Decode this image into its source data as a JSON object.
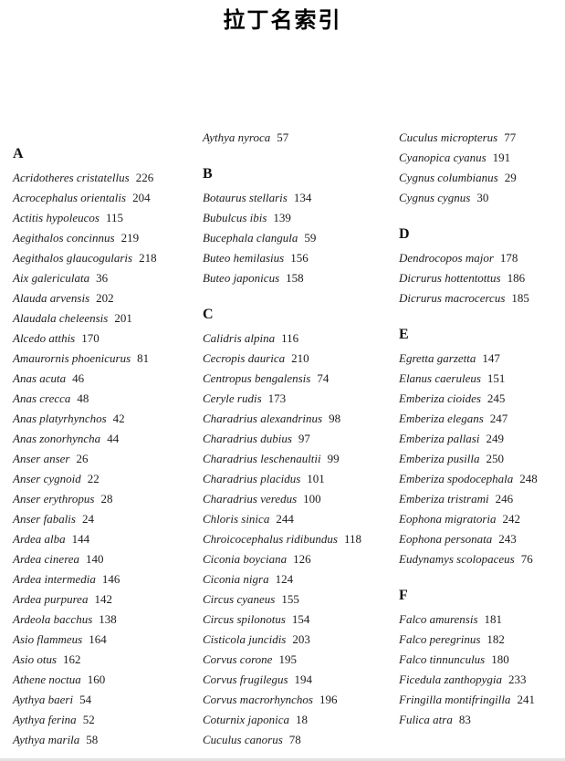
{
  "title": "拉丁名索引",
  "colors": {
    "text": "#1d1d1d",
    "title": "#000000",
    "bottom_edge": "#e3e3e3"
  },
  "columns": [
    {
      "blocks": [
        {
          "type": "header",
          "text": "A"
        },
        {
          "type": "entry",
          "name": "Acridotheres cristatellus",
          "page": "226"
        },
        {
          "type": "entry",
          "name": "Acrocephalus orientalis",
          "page": "204"
        },
        {
          "type": "entry",
          "name": "Actitis hypoleucos",
          "page": "115"
        },
        {
          "type": "entry",
          "name": "Aegithalos concinnus",
          "page": "219"
        },
        {
          "type": "entry",
          "name": "Aegithalos glaucogularis",
          "page": "218"
        },
        {
          "type": "entry",
          "name": "Aix galericulata",
          "page": "36"
        },
        {
          "type": "entry",
          "name": "Alauda arvensis",
          "page": "202"
        },
        {
          "type": "entry",
          "name": "Alaudala cheleensis",
          "page": "201"
        },
        {
          "type": "entry",
          "name": "Alcedo atthis",
          "page": "170"
        },
        {
          "type": "entry",
          "name": "Amaurornis phoenicurus",
          "page": "81"
        },
        {
          "type": "entry",
          "name": "Anas acuta",
          "page": "46"
        },
        {
          "type": "entry",
          "name": "Anas crecca",
          "page": "48"
        },
        {
          "type": "entry",
          "name": "Anas platyrhynchos",
          "page": "42"
        },
        {
          "type": "entry",
          "name": "Anas zonorhyncha",
          "page": "44"
        },
        {
          "type": "entry",
          "name": "Anser anser",
          "page": "26"
        },
        {
          "type": "entry",
          "name": "Anser cygnoid",
          "page": "22"
        },
        {
          "type": "entry",
          "name": "Anser erythropus",
          "page": "28"
        },
        {
          "type": "entry",
          "name": "Anser fabalis",
          "page": "24"
        },
        {
          "type": "entry",
          "name": "Ardea alba",
          "page": "144"
        },
        {
          "type": "entry",
          "name": "Ardea cinerea",
          "page": "140"
        },
        {
          "type": "entry",
          "name": "Ardea intermedia",
          "page": "146"
        },
        {
          "type": "entry",
          "name": "Ardea purpurea",
          "page": "142"
        },
        {
          "type": "entry",
          "name": "Ardeola bacchus",
          "page": "138"
        },
        {
          "type": "entry",
          "name": "Asio flammeus",
          "page": "164"
        },
        {
          "type": "entry",
          "name": "Asio otus",
          "page": "162"
        },
        {
          "type": "entry",
          "name": "Athene noctua",
          "page": "160"
        },
        {
          "type": "entry",
          "name": "Aythya baeri",
          "page": "54"
        },
        {
          "type": "entry",
          "name": "Aythya ferina",
          "page": "52"
        },
        {
          "type": "entry",
          "name": "Aythya marila",
          "page": "58"
        }
      ]
    },
    {
      "blocks": [
        {
          "type": "entry",
          "name": "Aythya nyroca",
          "page": "57"
        },
        {
          "type": "header",
          "text": "B"
        },
        {
          "type": "entry",
          "name": "Botaurus stellaris",
          "page": "134"
        },
        {
          "type": "entry",
          "name": "Bubulcus ibis",
          "page": "139"
        },
        {
          "type": "entry",
          "name": "Bucephala clangula",
          "page": "59"
        },
        {
          "type": "entry",
          "name": "Buteo hemilasius",
          "page": "156"
        },
        {
          "type": "entry",
          "name": "Buteo japonicus",
          "page": "158"
        },
        {
          "type": "header",
          "text": "C"
        },
        {
          "type": "entry",
          "name": "Calidris alpina",
          "page": "116"
        },
        {
          "type": "entry",
          "name": "Cecropis daurica",
          "page": "210"
        },
        {
          "type": "entry",
          "name": "Centropus bengalensis",
          "page": "74"
        },
        {
          "type": "entry",
          "name": "Ceryle rudis",
          "page": "173"
        },
        {
          "type": "entry",
          "name": "Charadrius alexandrinus",
          "page": "98"
        },
        {
          "type": "entry",
          "name": "Charadrius dubius",
          "page": "97"
        },
        {
          "type": "entry",
          "name": "Charadrius leschenaultii",
          "page": "99"
        },
        {
          "type": "entry",
          "name": "Charadrius placidus",
          "page": "101"
        },
        {
          "type": "entry",
          "name": "Charadrius veredus",
          "page": "100"
        },
        {
          "type": "entry",
          "name": "Chloris sinica",
          "page": "244"
        },
        {
          "type": "entry",
          "name": "Chroicocephalus ridibundus",
          "page": "118"
        },
        {
          "type": "entry",
          "name": "Ciconia boyciana",
          "page": "126"
        },
        {
          "type": "entry",
          "name": "Ciconia nigra",
          "page": "124"
        },
        {
          "type": "entry",
          "name": "Circus cyaneus",
          "page": "155"
        },
        {
          "type": "entry",
          "name": "Circus spilonotus",
          "page": "154"
        },
        {
          "type": "entry",
          "name": "Cisticola juncidis",
          "page": "203"
        },
        {
          "type": "entry",
          "name": "Corvus corone",
          "page": "195"
        },
        {
          "type": "entry",
          "name": "Corvus frugilegus",
          "page": "194"
        },
        {
          "type": "entry",
          "name": "Corvus macrorhynchos",
          "page": "196"
        },
        {
          "type": "entry",
          "name": "Coturnix japonica",
          "page": "18"
        },
        {
          "type": "entry",
          "name": "Cuculus canorus",
          "page": "78"
        }
      ]
    },
    {
      "blocks": [
        {
          "type": "entry",
          "name": "Cuculus micropterus",
          "page": "77"
        },
        {
          "type": "entry",
          "name": "Cyanopica cyanus",
          "page": "191"
        },
        {
          "type": "entry",
          "name": "Cygnus columbianus",
          "page": "29"
        },
        {
          "type": "entry",
          "name": "Cygnus cygnus",
          "page": "30"
        },
        {
          "type": "header",
          "text": "D"
        },
        {
          "type": "entry",
          "name": "Dendrocopos major",
          "page": "178"
        },
        {
          "type": "entry",
          "name": "Dicrurus hottentottus",
          "page": "186"
        },
        {
          "type": "entry",
          "name": "Dicrurus macrocercus",
          "page": "185"
        },
        {
          "type": "header",
          "text": "E"
        },
        {
          "type": "entry",
          "name": "Egretta garzetta",
          "page": "147"
        },
        {
          "type": "entry",
          "name": "Elanus caeruleus",
          "page": "151"
        },
        {
          "type": "entry",
          "name": "Emberiza cioides",
          "page": "245"
        },
        {
          "type": "entry",
          "name": "Emberiza elegans",
          "page": "247"
        },
        {
          "type": "entry",
          "name": "Emberiza pallasi",
          "page": "249"
        },
        {
          "type": "entry",
          "name": "Emberiza pusilla",
          "page": "250"
        },
        {
          "type": "entry",
          "name": "Emberiza spodocephala",
          "page": "248"
        },
        {
          "type": "entry",
          "name": "Emberiza tristrami",
          "page": "246"
        },
        {
          "type": "entry",
          "name": "Eophona migratoria",
          "page": "242"
        },
        {
          "type": "entry",
          "name": "Eophona personata",
          "page": "243"
        },
        {
          "type": "entry",
          "name": "Eudynamys scolopaceus",
          "page": "76"
        },
        {
          "type": "header",
          "text": "F"
        },
        {
          "type": "entry",
          "name": "Falco amurensis",
          "page": "181"
        },
        {
          "type": "entry",
          "name": "Falco peregrinus",
          "page": "182"
        },
        {
          "type": "entry",
          "name": "Falco tinnunculus",
          "page": "180"
        },
        {
          "type": "entry",
          "name": "Ficedula zanthopygia",
          "page": "233"
        },
        {
          "type": "entry",
          "name": "Fringilla montifringilla",
          "page": "241"
        },
        {
          "type": "entry",
          "name": "Fulica atra",
          "page": "83"
        }
      ]
    }
  ]
}
